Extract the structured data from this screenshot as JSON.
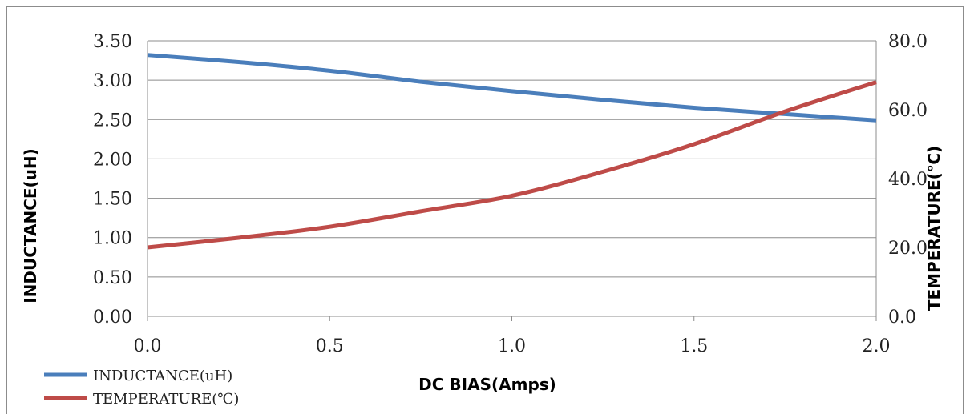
{
  "chart_data": {
    "type": "line",
    "xlabel": "DC BIAS(Amps)",
    "ylabel": "INDUCTANCE(uH)",
    "y2label": "TEMPERATURE(℃)",
    "x": [
      0.0,
      0.25,
      0.5,
      0.75,
      1.0,
      1.25,
      1.5,
      1.75,
      2.0
    ],
    "xlim": [
      0.0,
      2.0
    ],
    "xticks": [
      "0.0",
      "0.5",
      "1.0",
      "1.5",
      "2.0"
    ],
    "ylim": [
      0,
      3.5
    ],
    "yticks": [
      "0.00",
      "0.50",
      "1.00",
      "1.50",
      "2.00",
      "2.50",
      "3.00",
      "3.50"
    ],
    "y2lim": [
      0,
      80
    ],
    "y2ticks": [
      "0.0",
      "20.0",
      "40.0",
      "60.0",
      "80.0"
    ],
    "grid": true,
    "legend_position": "bottom-left",
    "series": [
      {
        "name": "INDUCTANCE(uH)",
        "axis": "left",
        "color": "#4a7ebb",
        "values": [
          3.32,
          3.23,
          3.12,
          2.98,
          2.86,
          2.75,
          2.65,
          2.57,
          2.49
        ]
      },
      {
        "name": "TEMPERATURE(℃)",
        "axis": "right",
        "color": "#be4b48",
        "values": [
          20.0,
          22.8,
          26.0,
          30.5,
          35.0,
          42.0,
          50.0,
          59.5,
          68.0
        ]
      }
    ]
  }
}
